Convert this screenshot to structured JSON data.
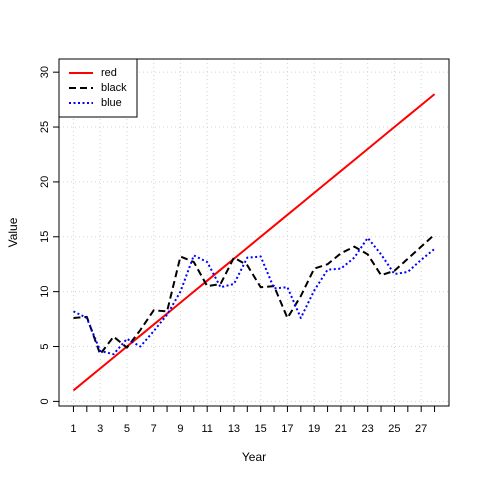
{
  "chart_data": {
    "type": "line",
    "title": "",
    "xlabel": "Year",
    "ylabel": "Value",
    "xlim": [
      1,
      28
    ],
    "ylim": [
      0,
      30
    ],
    "x_ticks": [
      1,
      3,
      5,
      7,
      9,
      11,
      13,
      15,
      17,
      19,
      21,
      23,
      25,
      27
    ],
    "y_ticks": [
      0,
      5,
      10,
      15,
      20,
      25,
      30
    ],
    "grid": true,
    "legend_position": "top-left",
    "x": [
      1,
      2,
      3,
      4,
      5,
      6,
      7,
      8,
      9,
      10,
      11,
      12,
      13,
      14,
      15,
      16,
      17,
      18,
      19,
      20,
      21,
      22,
      23,
      24,
      25,
      26,
      27,
      28
    ],
    "series": [
      {
        "name": "red",
        "color": "#ff0000",
        "dash": "solid",
        "values": [
          1,
          2,
          3,
          4,
          5,
          6,
          7,
          8,
          9,
          10,
          11,
          12,
          13,
          14,
          15,
          16,
          17,
          18,
          19,
          20,
          21,
          22,
          23,
          24,
          25,
          26,
          27,
          28
        ]
      },
      {
        "name": "black",
        "color": "#000000",
        "dash": "dashed",
        "values": [
          7.6,
          7.7,
          4.3,
          5.9,
          4.9,
          6.5,
          8.3,
          8.2,
          13.2,
          12.7,
          10.5,
          10.7,
          13.1,
          12.4,
          10.4,
          10.5,
          7.6,
          9.6,
          12.1,
          12.5,
          13.5,
          14.1,
          13.4,
          11.5,
          11.9,
          13.0,
          14.1,
          15.2
        ]
      },
      {
        "name": "blue",
        "color": "#0000ff",
        "dash": "dotted",
        "values": [
          8.2,
          7.6,
          4.6,
          4.3,
          5.7,
          5.0,
          6.4,
          7.9,
          10.0,
          13.3,
          12.7,
          10.4,
          10.7,
          13.1,
          13.2,
          10.3,
          10.4,
          7.6,
          10.1,
          12.0,
          12.1,
          13.1,
          14.9,
          13.4,
          11.6,
          11.8,
          12.9,
          13.9
        ]
      }
    ]
  }
}
